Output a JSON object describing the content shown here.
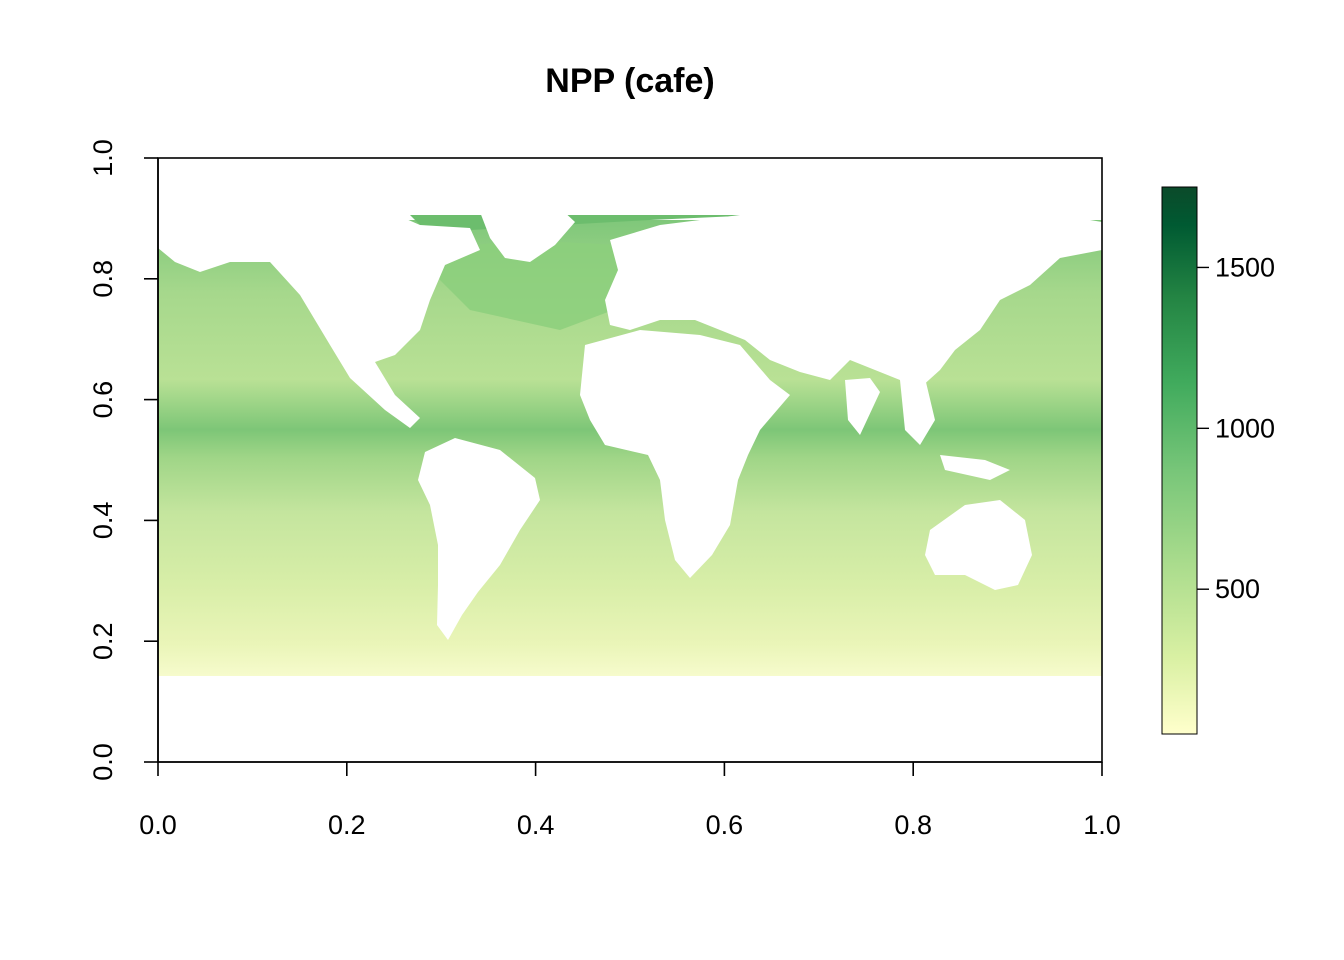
{
  "chart_data": {
    "type": "heatmap",
    "title": "NPP (cafe)",
    "xlabel": "",
    "ylabel": "",
    "xlim": [
      0,
      1
    ],
    "ylim": [
      0,
      1
    ],
    "x_ticks": [
      "0.0",
      "0.2",
      "0.4",
      "0.6",
      "0.8",
      "1.0"
    ],
    "y_ticks": [
      "0.0",
      "0.2",
      "0.4",
      "0.6",
      "0.8",
      "1.0"
    ],
    "colorbar": {
      "range": [
        50,
        1750
      ],
      "ticks": [
        500,
        1000,
        1500
      ],
      "tick_labels": [
        "500",
        "1000",
        "1500"
      ],
      "colors": [
        "#ffffcc",
        "#d9f0a3",
        "#addd8e",
        "#78c679",
        "#41ab5d",
        "#238443",
        "#005a32",
        "#0b4a2a"
      ]
    },
    "data_extent_y": [
      0.14,
      0.9
    ],
    "grid": false,
    "land_color": "#ffffff"
  }
}
